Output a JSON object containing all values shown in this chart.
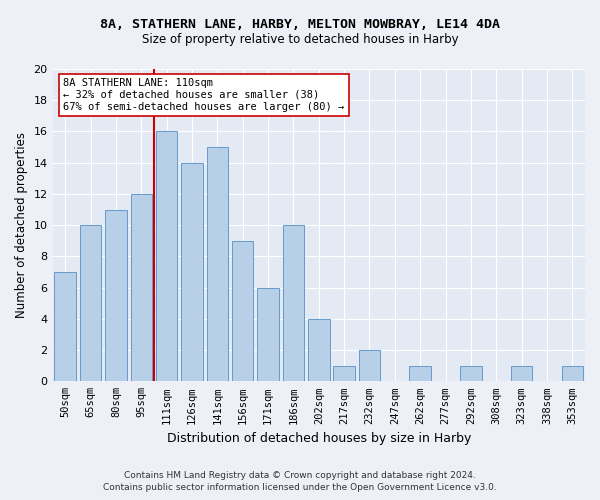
{
  "title": "8A, STATHERN LANE, HARBY, MELTON MOWBRAY, LE14 4DA",
  "subtitle": "Size of property relative to detached houses in Harby",
  "xlabel": "Distribution of detached houses by size in Harby",
  "ylabel": "Number of detached properties",
  "categories": [
    "50sqm",
    "65sqm",
    "80sqm",
    "95sqm",
    "111sqm",
    "126sqm",
    "141sqm",
    "156sqm",
    "171sqm",
    "186sqm",
    "202sqm",
    "217sqm",
    "232sqm",
    "247sqm",
    "262sqm",
    "277sqm",
    "292sqm",
    "308sqm",
    "323sqm",
    "338sqm",
    "353sqm"
  ],
  "values": [
    7,
    10,
    11,
    12,
    16,
    14,
    15,
    9,
    6,
    10,
    4,
    1,
    2,
    0,
    1,
    0,
    1,
    0,
    1,
    0,
    1
  ],
  "bar_color": "#b8cfe8",
  "bar_edgecolor": "#6699cc",
  "highlight_index": 4,
  "highlight_line_color": "#cc0000",
  "annotation_text": "8A STATHERN LANE: 110sqm\n← 32% of detached houses are smaller (38)\n67% of semi-detached houses are larger (80) →",
  "annotation_box_color": "#ffffff",
  "annotation_box_edgecolor": "#cc0000",
  "ylim": [
    0,
    20
  ],
  "yticks": [
    0,
    2,
    4,
    6,
    8,
    10,
    12,
    14,
    16,
    18,
    20
  ],
  "footer_line1": "Contains HM Land Registry data © Crown copyright and database right 2024.",
  "footer_line2": "Contains public sector information licensed under the Open Government Licence v3.0.",
  "background_color": "#edf1f7",
  "plot_background_color": "#e4eaf4"
}
